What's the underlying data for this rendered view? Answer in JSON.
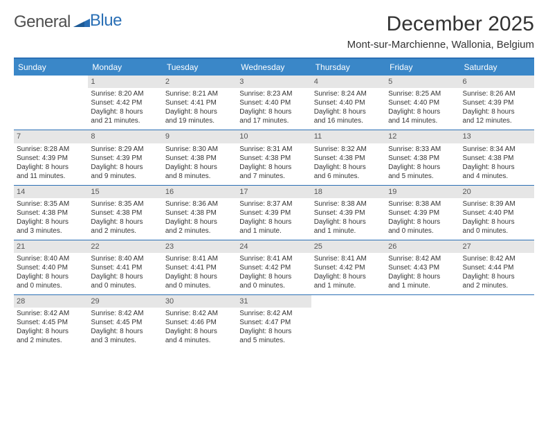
{
  "brand": {
    "part1": "General",
    "part2": "Blue"
  },
  "title": "December 2025",
  "location": "Mont-sur-Marchienne, Wallonia, Belgium",
  "colors": {
    "headerBar": "#3a87c8",
    "rule": "#2a6fb5",
    "dayNumBg": "#e6e6e6",
    "text": "#333333",
    "logoGray": "#4f4f4f",
    "logoBlue": "#2a6fb5",
    "white": "#ffffff"
  },
  "weekdays": [
    "Sunday",
    "Monday",
    "Tuesday",
    "Wednesday",
    "Thursday",
    "Friday",
    "Saturday"
  ],
  "weeks": [
    [
      null,
      {
        "n": "1",
        "sr": "Sunrise: 8:20 AM",
        "ss": "Sunset: 4:42 PM",
        "d1": "Daylight: 8 hours",
        "d2": "and 21 minutes."
      },
      {
        "n": "2",
        "sr": "Sunrise: 8:21 AM",
        "ss": "Sunset: 4:41 PM",
        "d1": "Daylight: 8 hours",
        "d2": "and 19 minutes."
      },
      {
        "n": "3",
        "sr": "Sunrise: 8:23 AM",
        "ss": "Sunset: 4:40 PM",
        "d1": "Daylight: 8 hours",
        "d2": "and 17 minutes."
      },
      {
        "n": "4",
        "sr": "Sunrise: 8:24 AM",
        "ss": "Sunset: 4:40 PM",
        "d1": "Daylight: 8 hours",
        "d2": "and 16 minutes."
      },
      {
        "n": "5",
        "sr": "Sunrise: 8:25 AM",
        "ss": "Sunset: 4:40 PM",
        "d1": "Daylight: 8 hours",
        "d2": "and 14 minutes."
      },
      {
        "n": "6",
        "sr": "Sunrise: 8:26 AM",
        "ss": "Sunset: 4:39 PM",
        "d1": "Daylight: 8 hours",
        "d2": "and 12 minutes."
      }
    ],
    [
      {
        "n": "7",
        "sr": "Sunrise: 8:28 AM",
        "ss": "Sunset: 4:39 PM",
        "d1": "Daylight: 8 hours",
        "d2": "and 11 minutes."
      },
      {
        "n": "8",
        "sr": "Sunrise: 8:29 AM",
        "ss": "Sunset: 4:39 PM",
        "d1": "Daylight: 8 hours",
        "d2": "and 9 minutes."
      },
      {
        "n": "9",
        "sr": "Sunrise: 8:30 AM",
        "ss": "Sunset: 4:38 PM",
        "d1": "Daylight: 8 hours",
        "d2": "and 8 minutes."
      },
      {
        "n": "10",
        "sr": "Sunrise: 8:31 AM",
        "ss": "Sunset: 4:38 PM",
        "d1": "Daylight: 8 hours",
        "d2": "and 7 minutes."
      },
      {
        "n": "11",
        "sr": "Sunrise: 8:32 AM",
        "ss": "Sunset: 4:38 PM",
        "d1": "Daylight: 8 hours",
        "d2": "and 6 minutes."
      },
      {
        "n": "12",
        "sr": "Sunrise: 8:33 AM",
        "ss": "Sunset: 4:38 PM",
        "d1": "Daylight: 8 hours",
        "d2": "and 5 minutes."
      },
      {
        "n": "13",
        "sr": "Sunrise: 8:34 AM",
        "ss": "Sunset: 4:38 PM",
        "d1": "Daylight: 8 hours",
        "d2": "and 4 minutes."
      }
    ],
    [
      {
        "n": "14",
        "sr": "Sunrise: 8:35 AM",
        "ss": "Sunset: 4:38 PM",
        "d1": "Daylight: 8 hours",
        "d2": "and 3 minutes."
      },
      {
        "n": "15",
        "sr": "Sunrise: 8:35 AM",
        "ss": "Sunset: 4:38 PM",
        "d1": "Daylight: 8 hours",
        "d2": "and 2 minutes."
      },
      {
        "n": "16",
        "sr": "Sunrise: 8:36 AM",
        "ss": "Sunset: 4:38 PM",
        "d1": "Daylight: 8 hours",
        "d2": "and 2 minutes."
      },
      {
        "n": "17",
        "sr": "Sunrise: 8:37 AM",
        "ss": "Sunset: 4:39 PM",
        "d1": "Daylight: 8 hours",
        "d2": "and 1 minute."
      },
      {
        "n": "18",
        "sr": "Sunrise: 8:38 AM",
        "ss": "Sunset: 4:39 PM",
        "d1": "Daylight: 8 hours",
        "d2": "and 1 minute."
      },
      {
        "n": "19",
        "sr": "Sunrise: 8:38 AM",
        "ss": "Sunset: 4:39 PM",
        "d1": "Daylight: 8 hours",
        "d2": "and 0 minutes."
      },
      {
        "n": "20",
        "sr": "Sunrise: 8:39 AM",
        "ss": "Sunset: 4:40 PM",
        "d1": "Daylight: 8 hours",
        "d2": "and 0 minutes."
      }
    ],
    [
      {
        "n": "21",
        "sr": "Sunrise: 8:40 AM",
        "ss": "Sunset: 4:40 PM",
        "d1": "Daylight: 8 hours",
        "d2": "and 0 minutes."
      },
      {
        "n": "22",
        "sr": "Sunrise: 8:40 AM",
        "ss": "Sunset: 4:41 PM",
        "d1": "Daylight: 8 hours",
        "d2": "and 0 minutes."
      },
      {
        "n": "23",
        "sr": "Sunrise: 8:41 AM",
        "ss": "Sunset: 4:41 PM",
        "d1": "Daylight: 8 hours",
        "d2": "and 0 minutes."
      },
      {
        "n": "24",
        "sr": "Sunrise: 8:41 AM",
        "ss": "Sunset: 4:42 PM",
        "d1": "Daylight: 8 hours",
        "d2": "and 0 minutes."
      },
      {
        "n": "25",
        "sr": "Sunrise: 8:41 AM",
        "ss": "Sunset: 4:42 PM",
        "d1": "Daylight: 8 hours",
        "d2": "and 1 minute."
      },
      {
        "n": "26",
        "sr": "Sunrise: 8:42 AM",
        "ss": "Sunset: 4:43 PM",
        "d1": "Daylight: 8 hours",
        "d2": "and 1 minute."
      },
      {
        "n": "27",
        "sr": "Sunrise: 8:42 AM",
        "ss": "Sunset: 4:44 PM",
        "d1": "Daylight: 8 hours",
        "d2": "and 2 minutes."
      }
    ],
    [
      {
        "n": "28",
        "sr": "Sunrise: 8:42 AM",
        "ss": "Sunset: 4:45 PM",
        "d1": "Daylight: 8 hours",
        "d2": "and 2 minutes."
      },
      {
        "n": "29",
        "sr": "Sunrise: 8:42 AM",
        "ss": "Sunset: 4:45 PM",
        "d1": "Daylight: 8 hours",
        "d2": "and 3 minutes."
      },
      {
        "n": "30",
        "sr": "Sunrise: 8:42 AM",
        "ss": "Sunset: 4:46 PM",
        "d1": "Daylight: 8 hours",
        "d2": "and 4 minutes."
      },
      {
        "n": "31",
        "sr": "Sunrise: 8:42 AM",
        "ss": "Sunset: 4:47 PM",
        "d1": "Daylight: 8 hours",
        "d2": "and 5 minutes."
      },
      null,
      null,
      null
    ]
  ]
}
